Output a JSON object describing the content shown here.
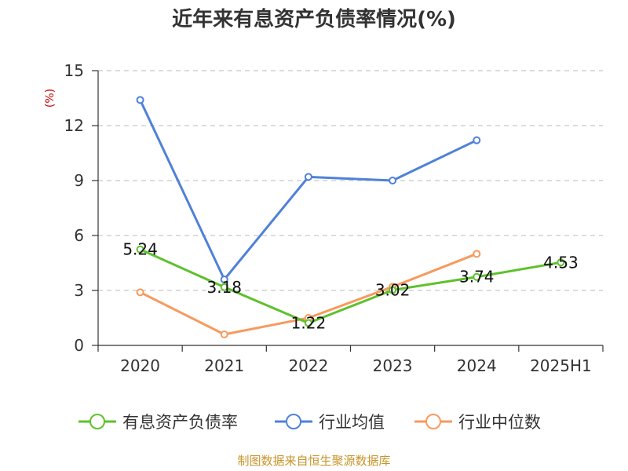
{
  "chart_data": {
    "type": "line",
    "title": "近年来有息资产负债率情况(%)",
    "ylabel": "(%)",
    "ylim": [
      0,
      15
    ],
    "yticks": [
      0,
      3,
      6,
      9,
      12,
      15
    ],
    "grid": true,
    "legend_position": "bottom",
    "categories": [
      "2020",
      "2021",
      "2022",
      "2023",
      "2024",
      "2025H1"
    ],
    "series": [
      {
        "name": "有息资产负债率",
        "color": "#5ec12c",
        "values": [
          5.24,
          3.18,
          1.22,
          3.02,
          3.74,
          4.53
        ],
        "labels": [
          "5.24",
          "3.18",
          "1.22",
          "3.02",
          "3.74",
          "4.53"
        ]
      },
      {
        "name": "行业均值",
        "color": "#4f81d8",
        "values": [
          13.4,
          3.6,
          9.2,
          9.0,
          11.2,
          null
        ]
      },
      {
        "name": "行业中位数",
        "color": "#f79a5e",
        "values": [
          2.9,
          0.6,
          1.5,
          3.2,
          5.0,
          null
        ]
      }
    ],
    "source": "制图数据来自恒生聚源数据库"
  }
}
